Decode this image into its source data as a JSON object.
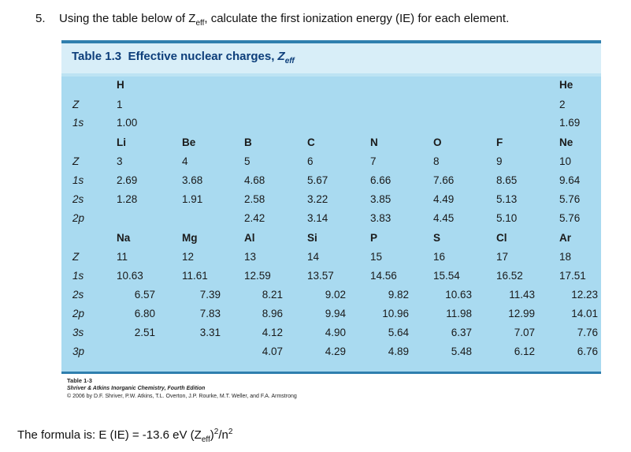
{
  "question": {
    "number": "5.",
    "text_before": "Using the table below of Z",
    "text_sub": "eff",
    "text_after": ", calculate the first ionization energy (IE) for each element."
  },
  "table": {
    "title_label": "Table 1.3",
    "title_text": "Effective nuclear charges,",
    "title_symbol": "Z",
    "title_sub": "eff",
    "row_labels": [
      "Z",
      "1s",
      "Z",
      "1s",
      "2s",
      "2p",
      "Z",
      "1s",
      "2s",
      "2p",
      "3s",
      "3p"
    ],
    "h": {
      "symbol": "H",
      "z": "1",
      "s1": "1.00"
    },
    "he": {
      "symbol": "He",
      "z": "2",
      "s1": "1.69"
    },
    "period2": [
      {
        "symbol": "Li",
        "z": "3",
        "s1": "2.69",
        "s2": "1.28",
        "p2": ""
      },
      {
        "symbol": "Be",
        "z": "4",
        "s1": "3.68",
        "s2": "1.91",
        "p2": ""
      },
      {
        "symbol": "B",
        "z": "5",
        "s1": "4.68",
        "s2": "2.58",
        "p2": "2.42"
      },
      {
        "symbol": "C",
        "z": "6",
        "s1": "5.67",
        "s2": "3.22",
        "p2": "3.14"
      },
      {
        "symbol": "N",
        "z": "7",
        "s1": "6.66",
        "s2": "3.85",
        "p2": "3.83"
      },
      {
        "symbol": "O",
        "z": "8",
        "s1": "7.66",
        "s2": "4.49",
        "p2": "4.45"
      },
      {
        "symbol": "F",
        "z": "9",
        "s1": "8.65",
        "s2": "5.13",
        "p2": "5.10"
      },
      {
        "symbol": "Ne",
        "z": "10",
        "s1": "9.64",
        "s2": "5.76",
        "p2": "5.76"
      }
    ],
    "period3": [
      {
        "symbol": "Na",
        "z": "11",
        "s1": "10.63",
        "s2": "6.57",
        "p2": "6.80",
        "s3": "2.51",
        "p3": ""
      },
      {
        "symbol": "Mg",
        "z": "12",
        "s1": "11.61",
        "s2": "7.39",
        "p2": "7.83",
        "s3": "3.31",
        "p3": ""
      },
      {
        "symbol": "Al",
        "z": "13",
        "s1": "12.59",
        "s2": "8.21",
        "p2": "8.96",
        "s3": "4.12",
        "p3": "4.07"
      },
      {
        "symbol": "Si",
        "z": "14",
        "s1": "13.57",
        "s2": "9.02",
        "p2": "9.94",
        "s3": "4.90",
        "p3": "4.29"
      },
      {
        "symbol": "P",
        "z": "15",
        "s1": "14.56",
        "s2": "9.82",
        "p2": "10.96",
        "s3": "5.64",
        "p3": "4.89"
      },
      {
        "symbol": "S",
        "z": "16",
        "s1": "15.54",
        "s2": "10.63",
        "p2": "11.98",
        "s3": "6.37",
        "p3": "5.48"
      },
      {
        "symbol": "Cl",
        "z": "17",
        "s1": "16.52",
        "s2": "11.43",
        "p2": "12.99",
        "s3": "7.07",
        "p3": "6.12"
      },
      {
        "symbol": "Ar",
        "z": "18",
        "s1": "17.51",
        "s2": "12.23",
        "p2": "14.01",
        "s3": "7.76",
        "p3": "6.76"
      }
    ]
  },
  "credit": {
    "line1": "Table 1-3",
    "line2": "Shriver & Atkins Inorganic Chemistry, Fourth Edition",
    "line3": "© 2006 by D.F. Shriver, P.W. Atkins, T.L. Overton, J.P. Rourke, M.T. Weller, and F.A. Armstrong"
  },
  "formula": {
    "prefix": "The formula is:  E (IE) = -13.6 eV (Z",
    "sub": "eff",
    "mid": ")",
    "sup": "2",
    "suffix": "/n",
    "sup2": "2"
  }
}
